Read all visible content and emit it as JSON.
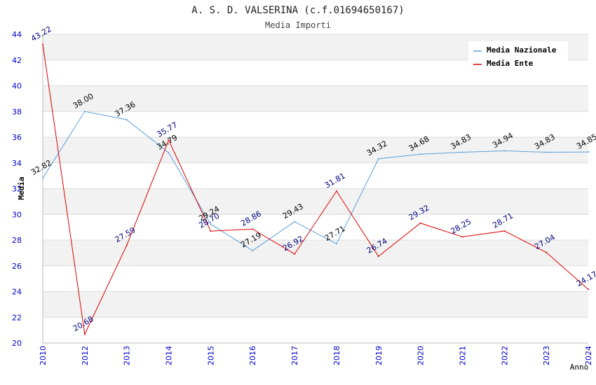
{
  "chart_data": {
    "type": "line",
    "title": "A. S. D. VALSERINA (c.f.01694650167)",
    "subtitle": "Media Importi",
    "xlabel": "Anno",
    "ylabel": "Media",
    "ylim": [
      20,
      44
    ],
    "ytick_step": 2,
    "grid": true,
    "legend_position": "top-right",
    "categories": [
      "2010",
      "2012",
      "2013",
      "2014",
      "2015",
      "2016",
      "2017",
      "2018",
      "2019",
      "2020",
      "2021",
      "2022",
      "2023",
      "2024"
    ],
    "series": [
      {
        "name": "Media Nazionale",
        "color": "#5aa0dc",
        "label_color": "#000000",
        "values": [
          32.82,
          38.0,
          37.36,
          34.79,
          29.24,
          27.19,
          29.43,
          27.71,
          34.32,
          34.68,
          34.83,
          34.94,
          34.83,
          34.85
        ],
        "labels": [
          "32.82",
          "38.00",
          "37.36",
          "34.79",
          "29.24",
          "27.19",
          "29.43",
          "27.71",
          "34.32",
          "34.68",
          "34.83",
          "34.94",
          "34.83",
          "34.85"
        ]
      },
      {
        "name": "Media Ente",
        "color": "#dd0000",
        "label_color": "#000080",
        "values": [
          43.22,
          20.68,
          27.59,
          35.77,
          28.7,
          28.86,
          26.92,
          31.81,
          26.74,
          29.32,
          28.25,
          28.71,
          27.04,
          24.17
        ],
        "labels": [
          "43.22",
          "20.68",
          "27.59",
          "35.77",
          "28.70",
          "28.86",
          "26.92",
          "31.81",
          "26.74",
          "29.32",
          "28.25",
          "28.71",
          "27.04",
          "24.17"
        ]
      }
    ]
  }
}
